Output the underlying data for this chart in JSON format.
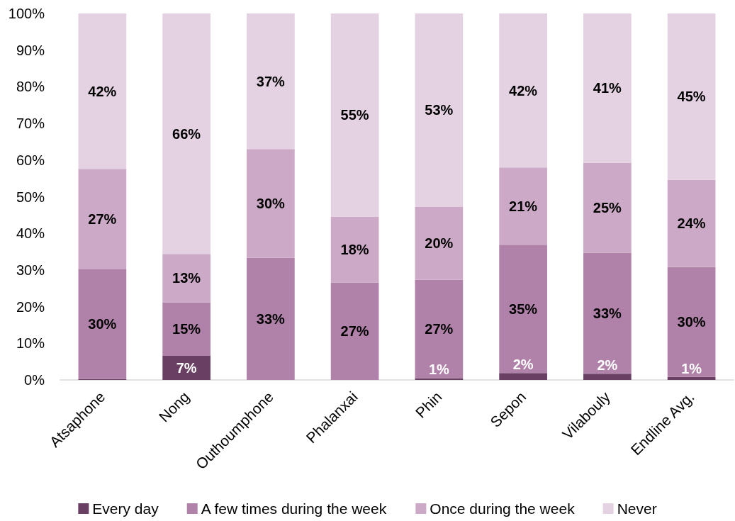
{
  "chart_data": {
    "type": "bar",
    "stacked": true,
    "categories": [
      "Atsaphone",
      "Nong",
      "Outhoumphone",
      "Phalanxai",
      "Phin",
      "Sepon",
      "Vilabouly",
      "Endline Avg."
    ],
    "series": [
      {
        "name": "Every day",
        "color": "#6a3f64",
        "values": [
          0.3,
          6.6,
          0,
          0,
          0.5,
          1.9,
          1.7,
          0.8
        ],
        "value_labels": [
          null,
          "7%",
          null,
          null,
          "1%",
          "2%",
          "2%",
          "1%"
        ]
      },
      {
        "name": "A few times during the week",
        "color": "#b082a9",
        "values": [
          30.0,
          14.6,
          33.3,
          26.6,
          26.8,
          35.0,
          33.0,
          30.0
        ],
        "value_labels": [
          "30%",
          "15%",
          "33%",
          "27%",
          "27%",
          "35%",
          "33%",
          "30%"
        ]
      },
      {
        "name": "Once during the week",
        "color": "#cca9c6",
        "values": [
          27.3,
          13.2,
          29.7,
          18.0,
          19.9,
          21.1,
          24.6,
          23.8
        ],
        "value_labels": [
          "27%",
          "13%",
          "30%",
          "18%",
          "20%",
          "21%",
          "25%",
          "24%"
        ]
      },
      {
        "name": "Never",
        "color": "#e4d2e2",
        "values": [
          42.4,
          65.6,
          37.0,
          55.4,
          52.8,
          42.0,
          40.7,
          45.4
        ],
        "value_labels": [
          "42%",
          "66%",
          "37%",
          "55%",
          "53%",
          "42%",
          "41%",
          "45%"
        ]
      }
    ],
    "ylim": [
      0,
      100
    ],
    "yticks": [
      {
        "value": 0,
        "label": "0%"
      },
      {
        "value": 10,
        "label": "10%"
      },
      {
        "value": 20,
        "label": "20%"
      },
      {
        "value": 30,
        "label": "30%"
      },
      {
        "value": 40,
        "label": "40%"
      },
      {
        "value": 50,
        "label": "50%"
      },
      {
        "value": 60,
        "label": "60%"
      },
      {
        "value": 70,
        "label": "70%"
      },
      {
        "value": 80,
        "label": "80%"
      },
      {
        "value": 90,
        "label": "90%"
      },
      {
        "value": 100,
        "label": "100%"
      }
    ],
    "legend": "bottom"
  }
}
